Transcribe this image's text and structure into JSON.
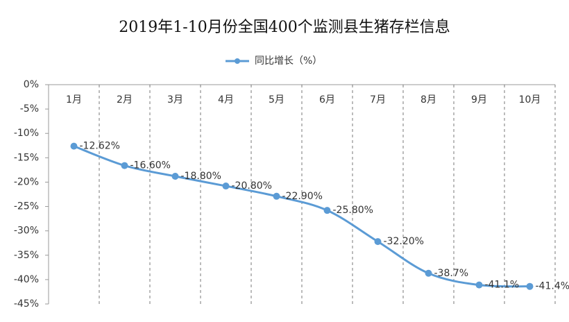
{
  "chart_data": {
    "type": "line",
    "title": "2019年1-10月份全国400个监测县生猪存栏信息",
    "categories": [
      "1月",
      "2月",
      "3月",
      "4月",
      "5月",
      "6月",
      "7月",
      "8月",
      "9月",
      "10月"
    ],
    "series": [
      {
        "name": "同比增长（%）",
        "color": "#5b9bd5",
        "values": [
          -12.62,
          -16.6,
          -18.8,
          -20.8,
          -22.9,
          -25.8,
          -32.2,
          -38.7,
          -41.1,
          -41.4
        ],
        "value_labels": [
          "-12.62%",
          "-16.60%",
          "-18.80%",
          "-20.80%",
          "-22.90%",
          "-25.80%",
          "-32.20%",
          "-38.7%",
          "-41.1%",
          "-41.4%"
        ]
      }
    ],
    "ylim": [
      -45,
      0
    ],
    "yticks": [
      {
        "value": 0,
        "label": "0%"
      },
      {
        "value": -5,
        "label": "-5%"
      },
      {
        "value": -10,
        "label": "-10%"
      },
      {
        "value": -15,
        "label": "-15%"
      },
      {
        "value": -20,
        "label": "-20%"
      },
      {
        "value": -25,
        "label": "-25%"
      },
      {
        "value": -30,
        "label": "-30%"
      },
      {
        "value": -35,
        "label": "-35%"
      },
      {
        "value": -40,
        "label": "-40%"
      },
      {
        "value": -45,
        "label": "-45%"
      }
    ],
    "legend": "top"
  }
}
